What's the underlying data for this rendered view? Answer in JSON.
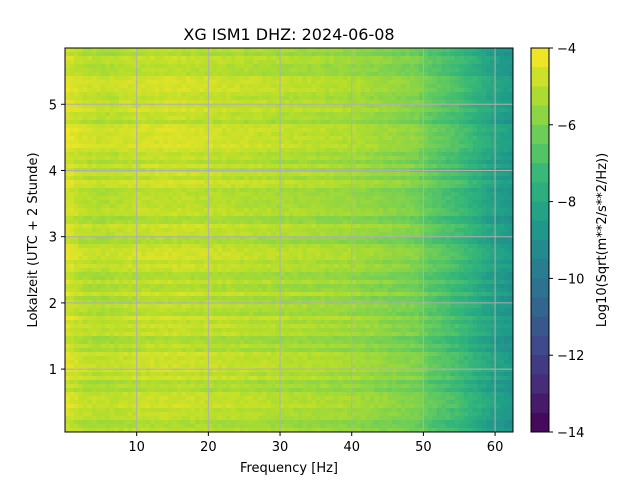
{
  "chart_data": {
    "type": "heatmap",
    "title": "XG ISM1  DHZ: 2024-06-08",
    "xlabel": "Frequency [Hz]",
    "ylabel": "Lokalzeit (UTC + 2 Stunde)",
    "colorbar_label": "Log10(Sqrt(m**2/s**2/Hz))",
    "colormap": "viridis",
    "xlim": [
      0,
      62.5
    ],
    "ylim": [
      5.85,
      0.05
    ],
    "y_inverted": true,
    "x_ticks": [
      10,
      20,
      30,
      40,
      50,
      60
    ],
    "y_ticks": [
      1,
      2,
      3,
      4,
      5
    ],
    "color_range": [
      -14,
      -4
    ],
    "colorbar_ticks": [
      -4,
      -6,
      -8,
      -10,
      -12,
      -14
    ],
    "colorbar_tick_labels": [
      "−4",
      "−6",
      "−8",
      "−10",
      "−12",
      "−14"
    ],
    "grid": true,
    "grid_color": "#b0b0b0",
    "frequency_profile": {
      "x": [
        0,
        2,
        5,
        10,
        15,
        20,
        25,
        30,
        35,
        40,
        45,
        49,
        51,
        55,
        58,
        60,
        62.5
      ],
      "values": [
        -4.6,
        -5.0,
        -5.2,
        -5.0,
        -4.95,
        -5.05,
        -5.15,
        -5.3,
        -5.4,
        -5.55,
        -5.85,
        -6.1,
        -6.6,
        -7.2,
        -7.9,
        -8.4,
        -8.8
      ]
    }
  }
}
